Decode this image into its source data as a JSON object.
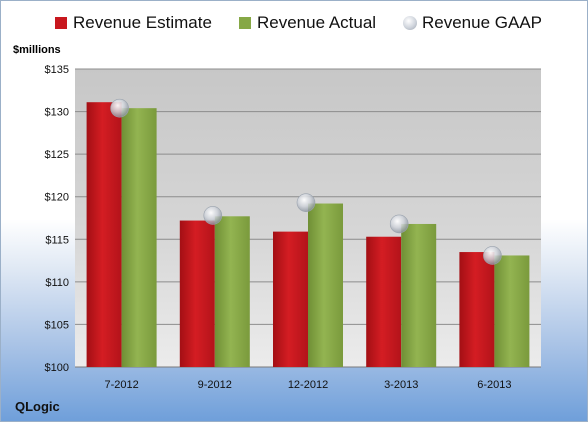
{
  "chart_data": {
    "type": "bar",
    "title": "",
    "ylabel": "$millions",
    "xlabel": "",
    "categories": [
      "7-2012",
      "9-2012",
      "12-2012",
      "3-2013",
      "6-2013"
    ],
    "series": [
      {
        "name": "Revenue Estimate",
        "color": "#c8171e",
        "values": [
          131.1,
          117.2,
          115.9,
          115.3,
          113.5
        ]
      },
      {
        "name": "Revenue Actual",
        "color": "#86a846",
        "values": [
          130.4,
          117.7,
          119.2,
          116.8,
          113.1
        ]
      }
    ],
    "markers": {
      "name": "Revenue GAAP",
      "values": [
        130.4,
        117.8,
        119.3,
        116.8,
        113.1
      ]
    },
    "ylim": [
      100,
      135
    ],
    "yticks": [
      "$100",
      "$105",
      "$110",
      "$115",
      "$120",
      "$125",
      "$130",
      "$135"
    ],
    "grid": true,
    "legend_position": "top"
  },
  "footer": {
    "company": "QLogic"
  }
}
